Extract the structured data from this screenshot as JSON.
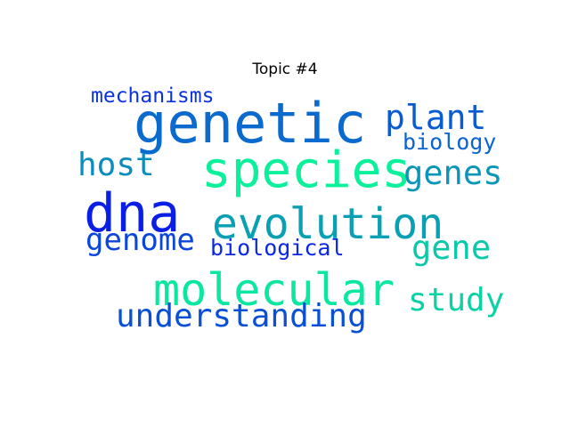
{
  "title": "Topic #4",
  "words": [
    {
      "key": "genetic",
      "text": "genetic",
      "color": "#0a6acd"
    },
    {
      "key": "species",
      "text": "species",
      "color": "#0bf09a"
    },
    {
      "key": "dna",
      "text": "dna",
      "color": "#0a1ee6"
    },
    {
      "key": "evolution",
      "text": "evolution",
      "color": "#0aa0b4"
    },
    {
      "key": "molecular",
      "text": "molecular",
      "color": "#0be6a0"
    },
    {
      "key": "plant",
      "text": "plant",
      "color": "#0a5ad2"
    },
    {
      "key": "host",
      "text": "host",
      "color": "#0a8cbe"
    },
    {
      "key": "genes",
      "text": "genes",
      "color": "#0a96b9"
    },
    {
      "key": "understanding",
      "text": "understanding",
      "color": "#0a50d7"
    },
    {
      "key": "genome",
      "text": "genome",
      "color": "#0a46dc"
    },
    {
      "key": "gene",
      "text": "gene",
      "color": "#0bc8aa"
    },
    {
      "key": "study",
      "text": "study",
      "color": "#0bd2a5"
    },
    {
      "key": "mechanisms",
      "text": "mechanisms",
      "color": "#0a32e1"
    },
    {
      "key": "biology",
      "text": "biology",
      "color": "#0a64d2"
    },
    {
      "key": "biological",
      "text": "biological",
      "color": "#0a28e6"
    }
  ]
}
